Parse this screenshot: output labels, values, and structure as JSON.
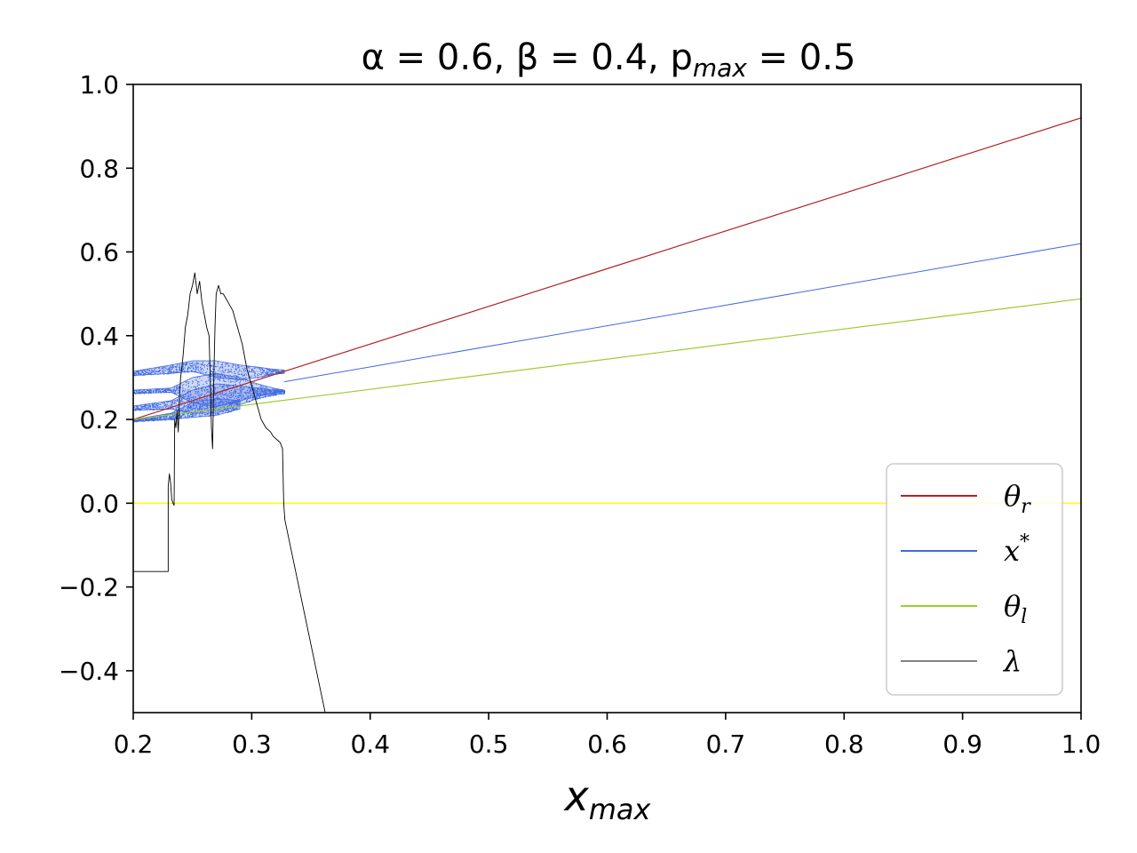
{
  "chart_data": {
    "type": "line",
    "title": "α = 0.6,  β = 0.4,  p",
    "title_sub": "max",
    "title_tail": " = 0.5",
    "xlabel": "x",
    "xlabel_sub": "max",
    "ylabel": "",
    "xlim": [
      0.2,
      1.0
    ],
    "ylim": [
      -0.5,
      1.0
    ],
    "xticks": [
      "0.2",
      "0.3",
      "0.4",
      "0.5",
      "0.6",
      "0.7",
      "0.8",
      "0.9",
      "1.0"
    ],
    "yticks": [
      "−0.4",
      "−0.2",
      "0.0",
      "0.2",
      "0.4",
      "0.6",
      "0.8",
      "1.0"
    ],
    "grid": false,
    "legend_placement": "lower-right",
    "zero_line": {
      "y": 0.0,
      "color": "#ffff00"
    },
    "series": [
      {
        "name": "θ",
        "sub": "r",
        "color": "#b22222",
        "x": [
          0.2,
          1.0
        ],
        "y": [
          0.2,
          0.92
        ]
      },
      {
        "name": "x",
        "sup": "*",
        "color": "#4169e1",
        "x": [
          0.2,
          0.3275,
          1.0
        ],
        "y": [
          0.2,
          0.29,
          0.62
        ],
        "bifurcation": {
          "x_start": 0.2,
          "x_end": 0.3275,
          "branches": [
            {
              "x": [
                0.2,
                0.232,
                0.25,
                0.27,
                0.29,
                0.305,
                0.318,
                0.3275
              ],
              "ymin": [
                0.305,
                0.31,
                0.315,
                0.3,
                0.295,
                0.3,
                0.308,
                0.31
              ],
              "ymax": [
                0.315,
                0.33,
                0.34,
                0.34,
                0.33,
                0.325,
                0.32,
                0.318
              ]
            },
            {
              "x": [
                0.2,
                0.232,
                0.25,
                0.27,
                0.29,
                0.305,
                0.318,
                0.3275
              ],
              "ymin": [
                0.262,
                0.265,
                0.24,
                0.23,
                0.245,
                0.255,
                0.262,
                0.268
              ],
              "ymax": [
                0.27,
                0.275,
                0.3,
                0.31,
                0.3,
                0.285,
                0.275,
                0.27
              ]
            },
            {
              "x": [
                0.2,
                0.232,
                0.25,
                0.27,
                0.29,
                0.305,
                0.318,
                0.3275
              ],
              "ymin": [
                0.222,
                0.225,
                0.215,
                0.215,
                0.235,
                0.25,
                0.258,
                0.262
              ],
              "ymax": [
                0.232,
                0.245,
                0.27,
                0.285,
                0.28,
                0.275,
                0.27,
                0.268
              ]
            },
            {
              "x": [
                0.2,
                0.232,
                0.25,
                0.27,
                0.29
              ],
              "ymin": [
                0.195,
                0.2,
                0.205,
                0.21,
                0.225
              ],
              "ymax": [
                0.2,
                0.215,
                0.24,
                0.25,
                0.245
              ]
            }
          ]
        }
      },
      {
        "name": "θ",
        "sub": "l",
        "color": "#9acd32",
        "x": [
          0.2,
          1.0
        ],
        "y": [
          0.2,
          0.488
        ]
      },
      {
        "name": "λ",
        "color": "#000000",
        "x": [
          0.2,
          0.2295,
          0.2295,
          0.2305,
          0.2315,
          0.2325,
          0.2335,
          0.2345,
          0.235,
          0.236,
          0.237,
          0.238,
          0.239,
          0.24,
          0.242,
          0.244,
          0.246,
          0.248,
          0.25,
          0.252,
          0.254,
          0.256,
          0.258,
          0.26,
          0.262,
          0.264,
          0.265,
          0.266,
          0.267,
          0.268,
          0.269,
          0.27,
          0.272,
          0.274,
          0.276,
          0.278,
          0.28,
          0.282,
          0.284,
          0.286,
          0.288,
          0.29,
          0.292,
          0.294,
          0.296,
          0.298,
          0.3,
          0.302,
          0.304,
          0.306,
          0.308,
          0.31,
          0.312,
          0.314,
          0.316,
          0.318,
          0.32,
          0.322,
          0.324,
          0.326,
          0.327,
          0.3275,
          0.328,
          0.362
        ],
        "y": [
          -0.163,
          -0.163,
          0.04,
          0.07,
          0.05,
          0.01,
          0.0,
          -0.005,
          0.2,
          0.18,
          0.22,
          0.17,
          0.25,
          0.3,
          0.35,
          0.42,
          0.45,
          0.5,
          0.52,
          0.55,
          0.5,
          0.53,
          0.48,
          0.45,
          0.42,
          0.4,
          0.3,
          0.18,
          0.13,
          0.3,
          0.42,
          0.5,
          0.52,
          0.5,
          0.5,
          0.49,
          0.48,
          0.47,
          0.46,
          0.44,
          0.42,
          0.4,
          0.38,
          0.35,
          0.32,
          0.3,
          0.28,
          0.26,
          0.24,
          0.22,
          0.2,
          0.19,
          0.18,
          0.175,
          0.17,
          0.16,
          0.155,
          0.15,
          0.145,
          0.13,
          0.0,
          -0.02,
          -0.04,
          -0.5
        ]
      }
    ]
  }
}
